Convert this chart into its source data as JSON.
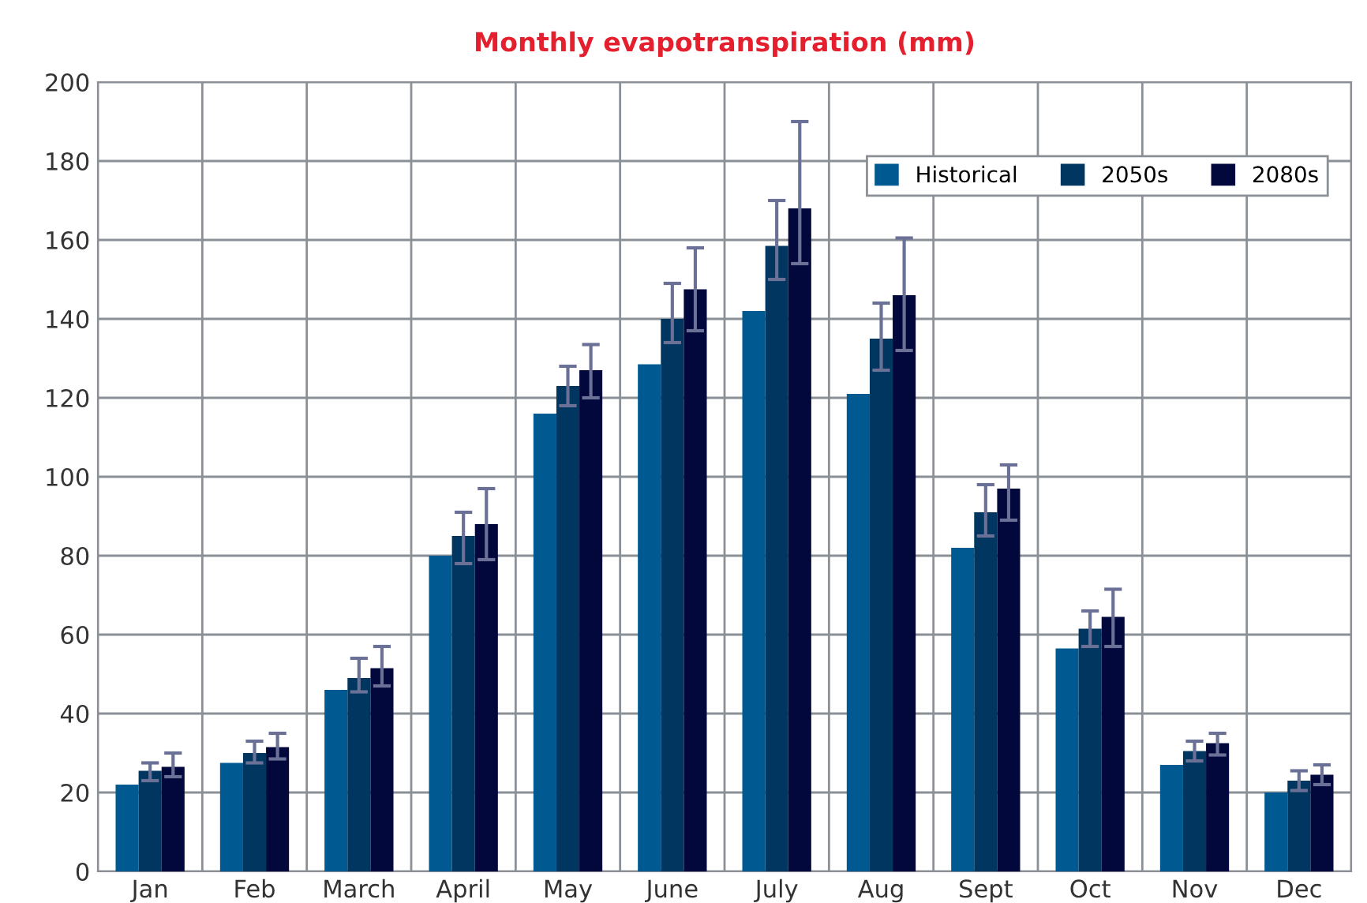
{
  "chart_data": {
    "type": "bar",
    "title": "Monthly evapotranspiration (mm)",
    "categories": [
      "Jan",
      "Feb",
      "March",
      "April",
      "May",
      "June",
      "July",
      "Aug",
      "Sept",
      "Oct",
      "Nov",
      "Dec"
    ],
    "series": [
      {
        "name": "Historical",
        "color": "#005a91",
        "values": [
          22,
          27.5,
          46,
          80,
          116,
          128.5,
          142,
          121,
          82,
          56.5,
          27,
          20
        ]
      },
      {
        "name": "2050s",
        "color": "#003660",
        "values": [
          25.5,
          30,
          49,
          85,
          123,
          140,
          158.5,
          135,
          91,
          61.5,
          30.5,
          23
        ],
        "errors": [
          [
            23,
            27.5
          ],
          [
            27.5,
            33
          ],
          [
            45.5,
            54
          ],
          [
            78,
            91
          ],
          [
            118,
            128
          ],
          [
            134,
            149
          ],
          [
            150,
            170
          ],
          [
            127,
            144
          ],
          [
            85,
            98
          ],
          [
            57,
            66
          ],
          [
            28,
            33
          ],
          [
            20.5,
            25.5
          ]
        ]
      },
      {
        "name": "2080s",
        "color": "#02083c",
        "values": [
          26.5,
          31.5,
          51.5,
          88,
          127,
          147.5,
          168,
          146,
          97,
          64.5,
          32.5,
          24.5
        ],
        "errors": [
          [
            24,
            30
          ],
          [
            28.5,
            35
          ],
          [
            47,
            57
          ],
          [
            79,
            97
          ],
          [
            120,
            133.5
          ],
          [
            137,
            158
          ],
          [
            154,
            190
          ],
          [
            132,
            160.5
          ],
          [
            89,
            103
          ],
          [
            57,
            71.5
          ],
          [
            29.5,
            35
          ],
          [
            22,
            27
          ]
        ]
      }
    ],
    "ylim": [
      0,
      200
    ],
    "yticks": [
      0,
      20,
      40,
      60,
      80,
      100,
      120,
      140,
      160,
      180,
      200
    ],
    "grid": true,
    "legend": "top right"
  }
}
